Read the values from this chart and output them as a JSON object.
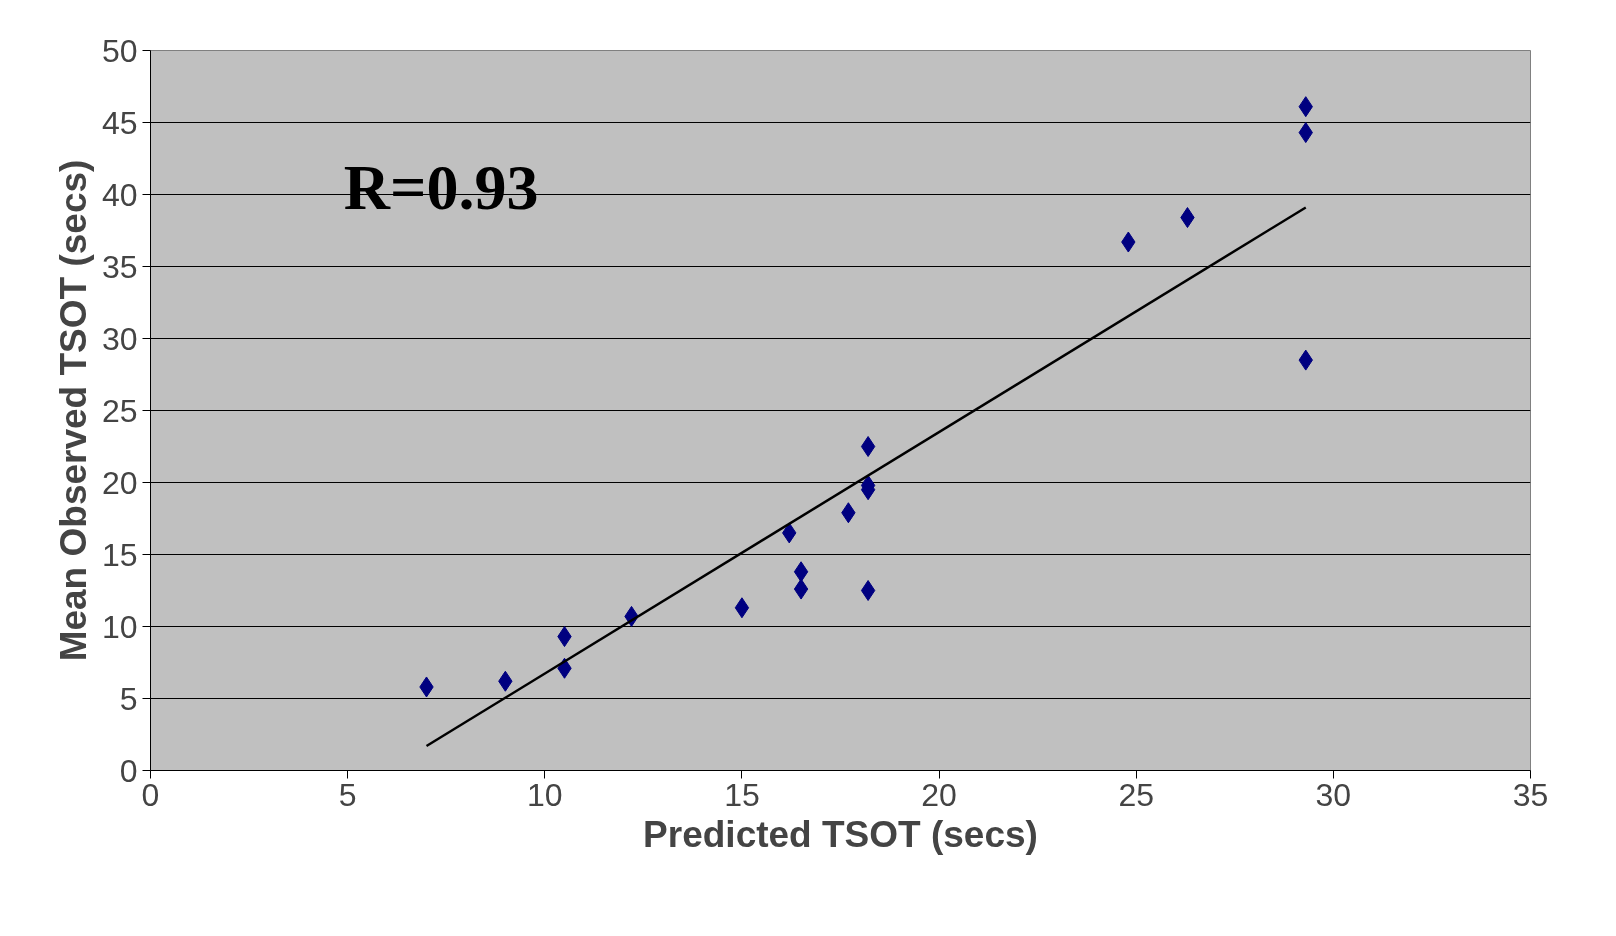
{
  "chart_data": {
    "type": "scatter",
    "xlabel": "Predicted TSOT (secs)",
    "ylabel": "Mean Observed TSOT (secs)",
    "annotations": [
      "R=0.93"
    ],
    "xlim": [
      0,
      35
    ],
    "xticks": [
      0,
      5,
      10,
      15,
      20,
      25,
      30,
      35
    ],
    "ylim": [
      0,
      50
    ],
    "yticks": [
      0,
      5,
      10,
      15,
      20,
      25,
      30,
      35,
      40,
      45,
      50
    ],
    "grid": "y",
    "marker": "diamond",
    "series": [
      {
        "color": "#000080",
        "x": [
          7.0,
          9.0,
          10.5,
          10.5,
          12.2,
          15.0,
          16.2,
          16.5,
          16.5,
          17.7,
          18.2,
          18.2,
          18.2,
          18.2,
          24.8,
          26.3,
          29.3,
          29.3,
          29.3
        ],
        "values": [
          5.8,
          6.2,
          9.3,
          7.1,
          10.7,
          11.3,
          16.5,
          13.8,
          12.6,
          17.9,
          22.5,
          19.8,
          19.5,
          12.5,
          36.7,
          38.4,
          46.1,
          44.3,
          28.5
        ]
      },
      {
        "type": "line",
        "color": "#000000",
        "marker": "none",
        "line_style": "solid",
        "x": [
          7.0,
          29.3
        ],
        "values": [
          1.7,
          39.1
        ]
      }
    ]
  }
}
